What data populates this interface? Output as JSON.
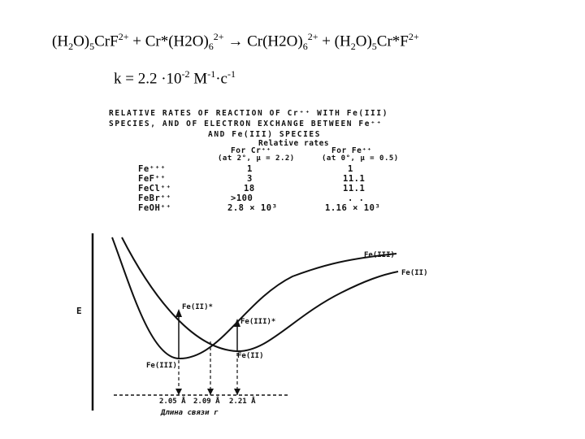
{
  "equation": {
    "lhs1": "(H",
    "lhs1_sub": "2",
    "lhs2": "O)",
    "lhs2_sub": "5",
    "lhs3": "CrF",
    "lhs3_sup": "2+",
    "plus1": " + Cr*(H2O)",
    "plus1_sub": "6",
    "plus1_sup": "2+",
    "arrow": " → Cr(H2O)",
    "arrow_sub": "6",
    "arrow_sup": "2+",
    "rhs1": " + (H",
    "rhs1_sub": "2",
    "rhs2": "O)",
    "rhs2_sub": "5",
    "rhs3": "Cr*F",
    "rhs3_sup": "2+"
  },
  "rate": {
    "prefix": "k = 2.2 ·10",
    "exp1": "-2",
    "unit1": " M",
    "exp2": "-1",
    "unit2": "·c",
    "exp3": "-1"
  },
  "table": {
    "caption_line1": "RELATIVE RATES OF REACTION OF Cr⁺⁺ WITH Fe(III)",
    "caption_line2": "SPECIES, AND OF ELECTRON EXCHANGE BETWEEN Fe⁺⁺",
    "caption_line3": "AND Fe(III) SPECIES",
    "header_group": "Relative rates",
    "col1_head": "For Cr⁺⁺",
    "col1_cond": "(at 2°, μ = 2.2)",
    "col2_head": "For Fe⁺⁺",
    "col2_cond": "(at 0°, μ = 0.5)",
    "rows": [
      {
        "species": "Fe⁺⁺⁺",
        "cr": "1",
        "fe": "1"
      },
      {
        "species": "FeF⁺⁺",
        "cr": "3",
        "fe": "11.1"
      },
      {
        "species": "FeCl⁺⁺",
        "cr": "18",
        "fe": "11.1"
      },
      {
        "species": "FeBr⁺⁺",
        "cr": ">100",
        "fe": ". ."
      },
      {
        "species": "FeOH⁺⁺",
        "cr": "2.8 × 10³",
        "fe": "1.16 × 10³"
      }
    ]
  },
  "chart_data": {
    "type": "line",
    "ylabel": "E",
    "xlabel": "Длина связи r",
    "series": [
      {
        "name": "Fe(III)",
        "min_r": "2.05 Å"
      },
      {
        "name": "Fe(II)",
        "min_r": "2.21 Å"
      }
    ],
    "crossing_r": "2.09 Å",
    "annotations": [
      "Fe(II)*",
      "Fe(III)*",
      "Fe(III)",
      "Fe(II)"
    ],
    "tick_labels": [
      "2.05 Å",
      "2.09 Å",
      "2.21 Å"
    ]
  }
}
